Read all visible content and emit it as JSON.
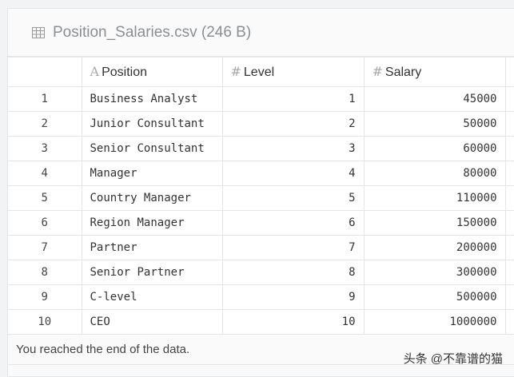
{
  "file": {
    "title": "Position_Salaries.csv (246 B)",
    "icon": "table-icon"
  },
  "columns": [
    {
      "label": "",
      "type": "index"
    },
    {
      "label": "Position",
      "type_icon": "A"
    },
    {
      "label": "Level",
      "type_icon": "#"
    },
    {
      "label": "Salary",
      "type_icon": "#"
    }
  ],
  "rows": [
    [
      "1",
      "Business Analyst",
      "1",
      "45000"
    ],
    [
      "2",
      "Junior Consultant",
      "2",
      "50000"
    ],
    [
      "3",
      "Senior Consultant",
      "3",
      "60000"
    ],
    [
      "4",
      "Manager",
      "4",
      "80000"
    ],
    [
      "5",
      "Country Manager",
      "5",
      "110000"
    ],
    [
      "6",
      "Region Manager",
      "6",
      "150000"
    ],
    [
      "7",
      "Partner",
      "7",
      "200000"
    ],
    [
      "8",
      "Senior Partner",
      "8",
      "300000"
    ],
    [
      "9",
      "C-level",
      "9",
      "500000"
    ],
    [
      "10",
      "CEO",
      "10",
      "1000000"
    ]
  ],
  "footer": "You reached the end of the data.",
  "watermark": "头条 @不靠谱的猫"
}
